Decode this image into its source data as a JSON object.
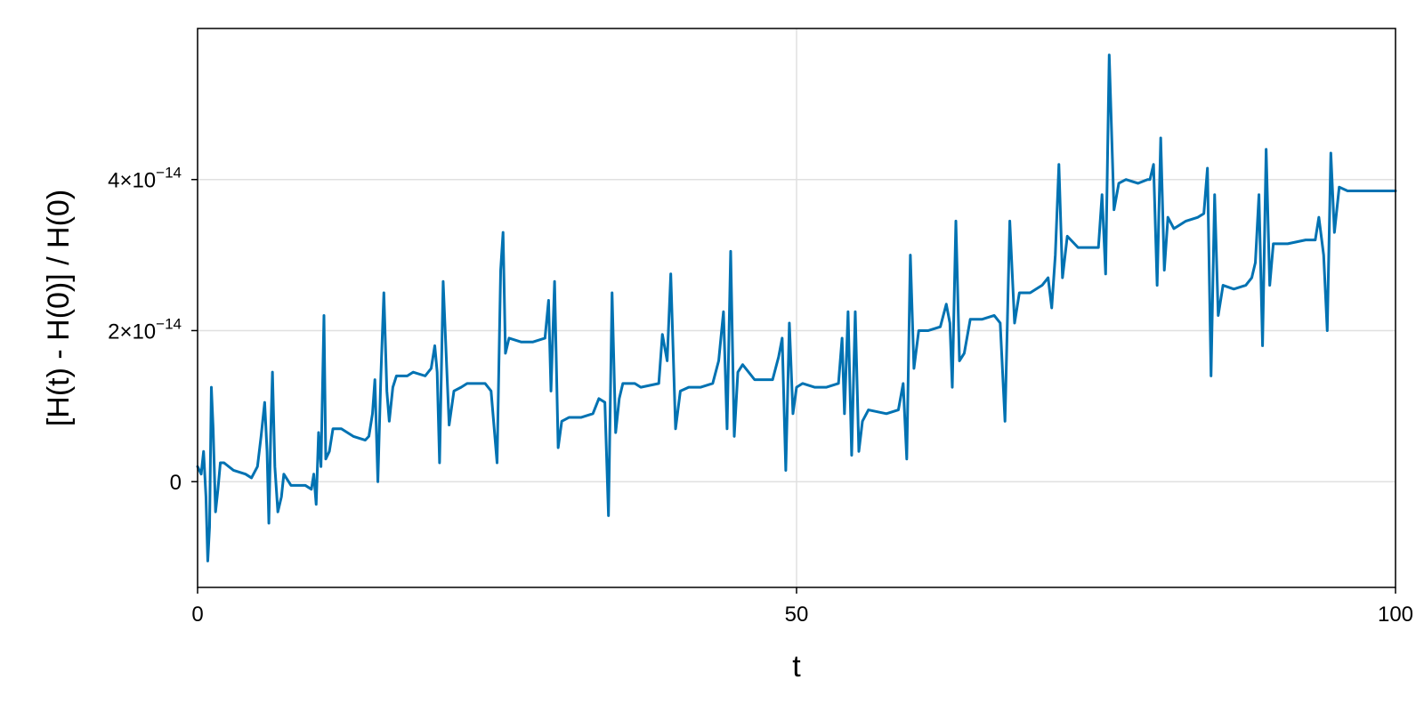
{
  "chart_data": {
    "type": "line",
    "title": "",
    "xlabel": "t",
    "ylabel": "[H(t) - H(0)] / H(0)",
    "xlim": [
      0,
      100
    ],
    "ylim": [
      -1.4e-14,
      6e-14
    ],
    "grid": true,
    "legend": "none",
    "x_ticks": [
      {
        "value": 0,
        "label": "0"
      },
      {
        "value": 50,
        "label": "50"
      },
      {
        "value": 100,
        "label": "100"
      }
    ],
    "y_ticks": [
      {
        "value": 0,
        "label": "0"
      },
      {
        "value": 2e-14,
        "label_base": "2×10",
        "label_exp": "−14"
      },
      {
        "value": 4e-14,
        "label_base": "4×10",
        "label_exp": "−14"
      }
    ],
    "series": [
      {
        "color": "#0072b2",
        "points": [
          [
            0,
            2e-15
          ],
          [
            0.3,
            1e-15
          ],
          [
            0.5,
            4e-15
          ],
          [
            0.7,
            -2e-15
          ],
          [
            0.85,
            -1.05e-14
          ],
          [
            1.0,
            -6e-15
          ],
          [
            1.15,
            1.25e-14
          ],
          [
            1.3,
            7e-15
          ],
          [
            1.5,
            -4e-15
          ],
          [
            1.7,
            -1e-15
          ],
          [
            1.9,
            2.5e-15
          ],
          [
            2.2,
            2.5e-15
          ],
          [
            3,
            1.5e-15
          ],
          [
            4,
            1e-15
          ],
          [
            4.5,
            5e-16
          ],
          [
            5,
            2e-15
          ],
          [
            5.3,
            6e-15
          ],
          [
            5.6,
            1.05e-14
          ],
          [
            5.8,
            4e-15
          ],
          [
            5.95,
            -5.5e-15
          ],
          [
            6.1,
            6e-15
          ],
          [
            6.25,
            1.45e-14
          ],
          [
            6.45,
            2e-15
          ],
          [
            6.7,
            -4e-15
          ],
          [
            7,
            -2e-15
          ],
          [
            7.2,
            1e-15
          ],
          [
            7.8,
            -5e-16
          ],
          [
            9,
            -5e-16
          ],
          [
            9.5,
            -1e-15
          ],
          [
            9.7,
            1e-15
          ],
          [
            9.9,
            -3e-15
          ],
          [
            10.1,
            6.5e-15
          ],
          [
            10.3,
            2e-15
          ],
          [
            10.55,
            2.2e-14
          ],
          [
            10.7,
            3e-15
          ],
          [
            11,
            4e-15
          ],
          [
            11.3,
            7e-15
          ],
          [
            12,
            7e-15
          ],
          [
            13,
            6e-15
          ],
          [
            14,
            5.5e-15
          ],
          [
            14.3,
            6e-15
          ],
          [
            14.6,
            9e-15
          ],
          [
            14.8,
            1.35e-14
          ],
          [
            15.05,
            0.0
          ],
          [
            15.3,
            1.4e-14
          ],
          [
            15.55,
            2.5e-14
          ],
          [
            15.8,
            1.2e-14
          ],
          [
            16,
            8e-15
          ],
          [
            16.3,
            1.25e-14
          ],
          [
            16.6,
            1.4e-14
          ],
          [
            17.5,
            1.4e-14
          ],
          [
            18,
            1.45e-14
          ],
          [
            19,
            1.4e-14
          ],
          [
            19.5,
            1.5e-14
          ],
          [
            19.8,
            1.8e-14
          ],
          [
            20,
            1.45e-14
          ],
          [
            20.2,
            2.5e-15
          ],
          [
            20.5,
            2.65e-14
          ],
          [
            20.8,
            1.5e-14
          ],
          [
            21,
            7.5e-15
          ],
          [
            21.4,
            1.2e-14
          ],
          [
            22,
            1.25e-14
          ],
          [
            22.5,
            1.3e-14
          ],
          [
            24,
            1.3e-14
          ],
          [
            24.5,
            1.2e-14
          ],
          [
            25,
            2.5e-15
          ],
          [
            25.3,
            2.8e-14
          ],
          [
            25.5,
            3.3e-14
          ],
          [
            25.7,
            1.7e-14
          ],
          [
            26,
            1.9e-14
          ],
          [
            27,
            1.85e-14
          ],
          [
            28,
            1.85e-14
          ],
          [
            29,
            1.9e-14
          ],
          [
            29.3,
            2.4e-14
          ],
          [
            29.5,
            1.2e-14
          ],
          [
            29.8,
            2.65e-14
          ],
          [
            30.1,
            4.5e-15
          ],
          [
            30.4,
            8e-15
          ],
          [
            31,
            8.5e-15
          ],
          [
            32,
            8.5e-15
          ],
          [
            33,
            9e-15
          ],
          [
            33.5,
            1.1e-14
          ],
          [
            34,
            1.05e-14
          ],
          [
            34.3,
            -4.5e-15
          ],
          [
            34.6,
            2.5e-14
          ],
          [
            34.9,
            6.5e-15
          ],
          [
            35.2,
            1.1e-14
          ],
          [
            35.5,
            1.3e-14
          ],
          [
            36.5,
            1.3e-14
          ],
          [
            37,
            1.25e-14
          ],
          [
            38.5,
            1.3e-14
          ],
          [
            38.8,
            1.95e-14
          ],
          [
            39.2,
            1.6e-14
          ],
          [
            39.5,
            2.75e-14
          ],
          [
            39.9,
            7e-15
          ],
          [
            40.3,
            1.2e-14
          ],
          [
            41,
            1.25e-14
          ],
          [
            42,
            1.25e-14
          ],
          [
            43,
            1.3e-14
          ],
          [
            43.5,
            1.6e-14
          ],
          [
            43.9,
            2.25e-14
          ],
          [
            44.2,
            7e-15
          ],
          [
            44.5,
            3.05e-14
          ],
          [
            44.8,
            6e-15
          ],
          [
            45.1,
            1.45e-14
          ],
          [
            45.5,
            1.55e-14
          ],
          [
            46.5,
            1.35e-14
          ],
          [
            48,
            1.35e-14
          ],
          [
            48.5,
            1.65e-14
          ],
          [
            48.8,
            1.9e-14
          ],
          [
            49.1,
            1.5e-15
          ],
          [
            49.4,
            2.1e-14
          ],
          [
            49.7,
            9e-15
          ],
          [
            50,
            1.25e-14
          ],
          [
            50.5,
            1.3e-14
          ],
          [
            51.5,
            1.25e-14
          ],
          [
            52.5,
            1.25e-14
          ],
          [
            53.5,
            1.3e-14
          ],
          [
            53.8,
            1.9e-14
          ],
          [
            54,
            9e-15
          ],
          [
            54.3,
            2.25e-14
          ],
          [
            54.6,
            3.5e-15
          ],
          [
            54.9,
            2.25e-14
          ],
          [
            55.2,
            4e-15
          ],
          [
            55.5,
            8e-15
          ],
          [
            56,
            9.5e-15
          ],
          [
            57.5,
            9e-15
          ],
          [
            58.5,
            9.5e-15
          ],
          [
            58.9,
            1.3e-14
          ],
          [
            59.2,
            3e-15
          ],
          [
            59.5,
            3e-14
          ],
          [
            59.8,
            1.5e-14
          ],
          [
            60.2,
            2e-14
          ],
          [
            61,
            2e-14
          ],
          [
            62,
            2.05e-14
          ],
          [
            62.5,
            2.35e-14
          ],
          [
            62.8,
            2.1e-14
          ],
          [
            63,
            1.25e-14
          ],
          [
            63.3,
            3.45e-14
          ],
          [
            63.6,
            1.6e-14
          ],
          [
            64,
            1.7e-14
          ],
          [
            64.5,
            2.15e-14
          ],
          [
            65.5,
            2.15e-14
          ],
          [
            66.5,
            2.2e-14
          ],
          [
            67,
            2.1e-14
          ],
          [
            67.4,
            8e-15
          ],
          [
            67.8,
            3.45e-14
          ],
          [
            68.2,
            2.1e-14
          ],
          [
            68.6,
            2.5e-14
          ],
          [
            69.5,
            2.5e-14
          ],
          [
            70.5,
            2.6e-14
          ],
          [
            71,
            2.7e-14
          ],
          [
            71.3,
            2.3e-14
          ],
          [
            71.6,
            3e-14
          ],
          [
            71.9,
            4.2e-14
          ],
          [
            72.2,
            2.7e-14
          ],
          [
            72.6,
            3.25e-14
          ],
          [
            73.5,
            3.1e-14
          ],
          [
            74.5,
            3.1e-14
          ],
          [
            75.2,
            3.1e-14
          ],
          [
            75.5,
            3.8e-14
          ],
          [
            75.8,
            2.75e-14
          ],
          [
            76.1,
            5.65e-14
          ],
          [
            76.5,
            3.6e-14
          ],
          [
            76.9,
            3.95e-14
          ],
          [
            77.5,
            4e-14
          ],
          [
            78.5,
            3.95e-14
          ],
          [
            79.3,
            4e-14
          ],
          [
            79.5,
            4e-14
          ],
          [
            79.8,
            4.2e-14
          ],
          [
            80.1,
            2.6e-14
          ],
          [
            80.4,
            4.55e-14
          ],
          [
            80.7,
            2.8e-14
          ],
          [
            81,
            3.5e-14
          ],
          [
            81.5,
            3.35e-14
          ],
          [
            82.5,
            3.45e-14
          ],
          [
            83.5,
            3.5e-14
          ],
          [
            84,
            3.55e-14
          ],
          [
            84.3,
            4.15e-14
          ],
          [
            84.6,
            1.4e-14
          ],
          [
            84.9,
            3.8e-14
          ],
          [
            85.2,
            2.2e-14
          ],
          [
            85.6,
            2.6e-14
          ],
          [
            86.5,
            2.55e-14
          ],
          [
            87.5,
            2.6e-14
          ],
          [
            88,
            2.7e-14
          ],
          [
            88.3,
            2.9e-14
          ],
          [
            88.6,
            3.8e-14
          ],
          [
            88.9,
            1.8e-14
          ],
          [
            89.2,
            4.4e-14
          ],
          [
            89.5,
            2.6e-14
          ],
          [
            89.8,
            3.15e-14
          ],
          [
            91,
            3.15e-14
          ],
          [
            92.5,
            3.2e-14
          ],
          [
            93.3,
            3.2e-14
          ],
          [
            93.6,
            3.5e-14
          ],
          [
            94,
            3e-14
          ],
          [
            94.3,
            2e-14
          ],
          [
            94.6,
            4.35e-14
          ],
          [
            94.9,
            3.3e-14
          ],
          [
            95.3,
            3.9e-14
          ],
          [
            96,
            3.85e-14
          ],
          [
            100,
            3.85e-14
          ]
        ]
      }
    ]
  }
}
